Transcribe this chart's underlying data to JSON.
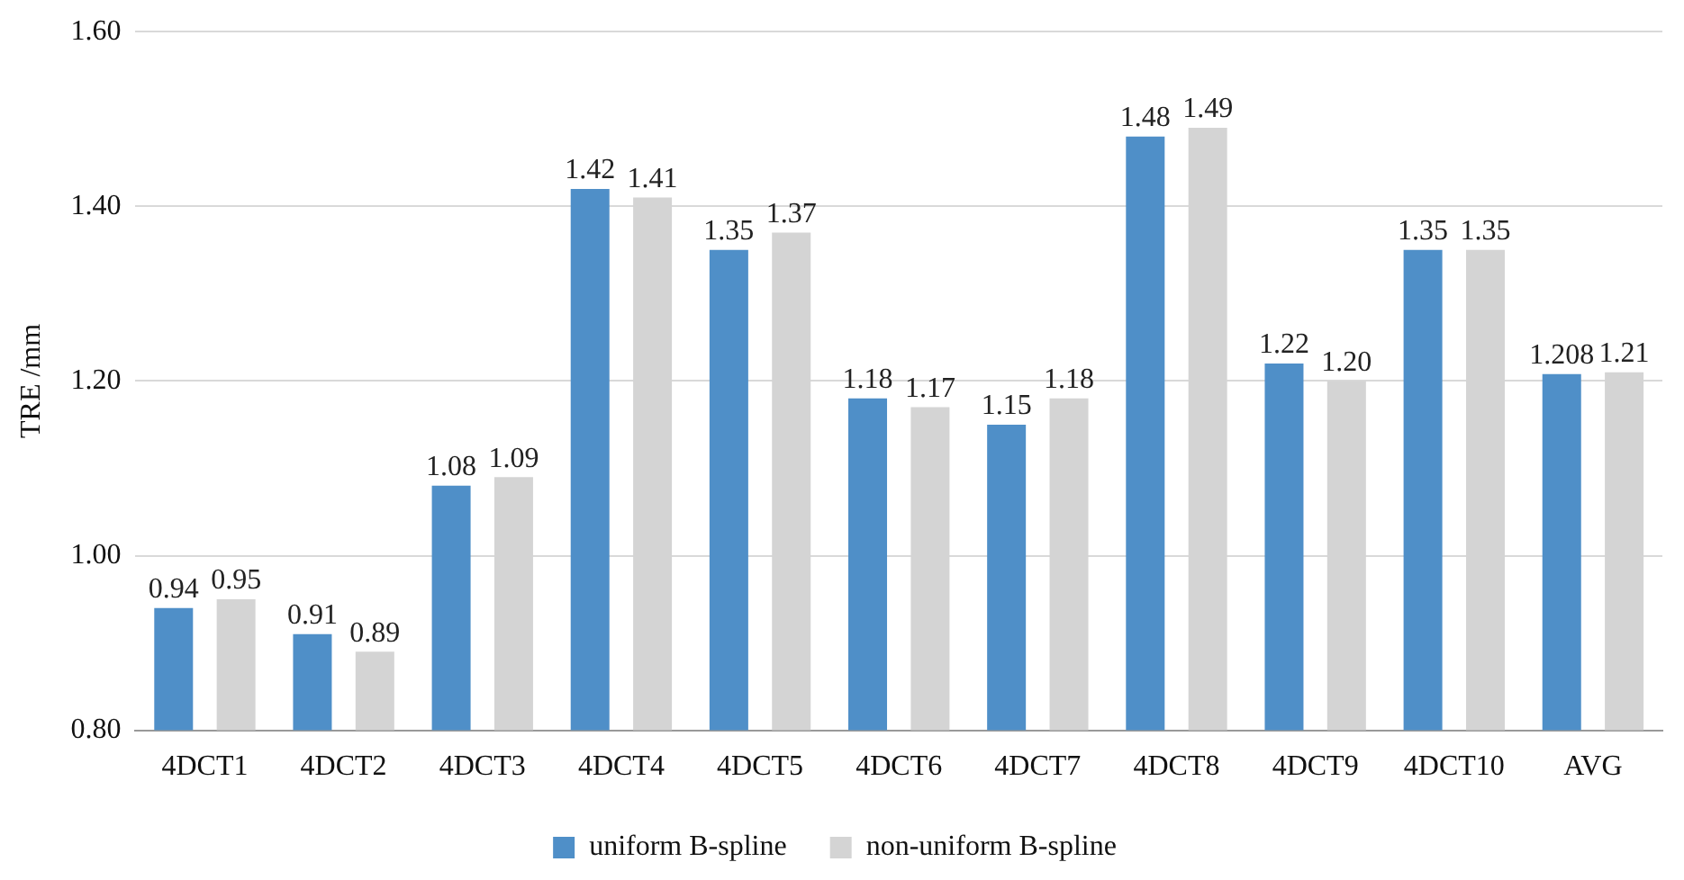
{
  "chart_data": {
    "type": "bar",
    "ylabel": "TRE /mm",
    "categories": [
      "4DCT1",
      "4DCT2",
      "4DCT3",
      "4DCT4",
      "4DCT5",
      "4DCT6",
      "4DCT7",
      "4DCT8",
      "4DCT9",
      "4DCT10",
      "AVG"
    ],
    "series": [
      {
        "name": "uniform B-spline",
        "color": "#4f8fc8",
        "values": [
          0.94,
          0.91,
          1.08,
          1.42,
          1.35,
          1.18,
          1.15,
          1.48,
          1.22,
          1.35,
          1.208
        ],
        "value_labels": [
          "0.94",
          "0.91",
          "1.08",
          "1.42",
          "1.35",
          "1.18",
          "1.15",
          "1.48",
          "1.22",
          "1.35",
          "1.208"
        ]
      },
      {
        "name": "non-uniform B-spline",
        "color": "#d4d4d4",
        "values": [
          0.95,
          0.89,
          1.09,
          1.41,
          1.37,
          1.17,
          1.18,
          1.49,
          1.2,
          1.35,
          1.21
        ],
        "value_labels": [
          "0.95",
          "0.89",
          "1.09",
          "1.41",
          "1.37",
          "1.17",
          "1.18",
          "1.49",
          "1.20",
          "1.35",
          "1.21"
        ]
      }
    ],
    "ylim": [
      0.8,
      1.6
    ],
    "yticks": [
      {
        "value": 0.8,
        "label": "0.80"
      },
      {
        "value": 1.0,
        "label": "1.00"
      },
      {
        "value": 1.2,
        "label": "1.20"
      },
      {
        "value": 1.4,
        "label": "1.40"
      },
      {
        "value": 1.6,
        "label": "1.60"
      }
    ],
    "grid": "y",
    "legend": "bottom"
  }
}
